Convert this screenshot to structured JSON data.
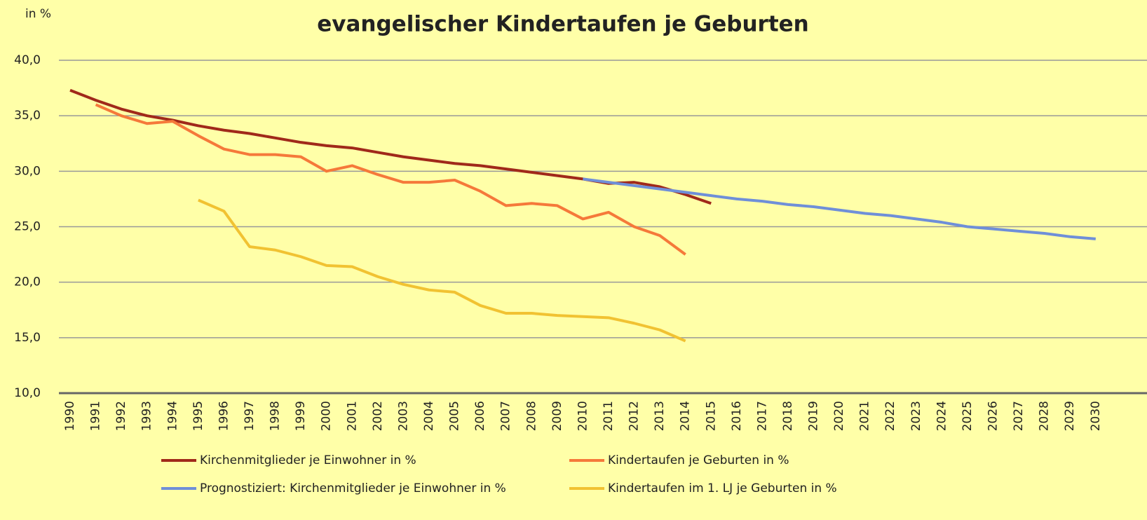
{
  "chart_data": {
    "type": "line",
    "title": "evangelischer Kindertaufen je Geburten",
    "y_label": "in %",
    "categories": [
      "1990",
      "1991",
      "1992",
      "1993",
      "1994",
      "1995",
      "1996",
      "1997",
      "1998",
      "1999",
      "2000",
      "2001",
      "2002",
      "2003",
      "2004",
      "2005",
      "2006",
      "2007",
      "2008",
      "2009",
      "2010",
      "2011",
      "2012",
      "2013",
      "2014",
      "2015",
      "2016",
      "2017",
      "2018",
      "2019",
      "2020",
      "2021",
      "2022",
      "2023",
      "2024",
      "2025",
      "2026",
      "2027",
      "2028",
      "2029",
      "2030"
    ],
    "series": [
      {
        "name": "Kirchenmitglieder je Einwohner in %",
        "color": "#a0291a",
        "values": [
          37.3,
          36.4,
          35.6,
          35.0,
          34.6,
          34.1,
          33.7,
          33.4,
          33.0,
          32.6,
          32.3,
          32.1,
          31.7,
          31.3,
          31.0,
          30.7,
          30.5,
          30.2,
          29.9,
          29.6,
          29.3,
          28.9,
          29.0,
          28.6,
          27.9,
          27.1,
          null,
          null,
          null,
          null,
          null,
          null,
          null,
          null,
          null,
          null,
          null,
          null,
          null,
          null,
          null
        ]
      },
      {
        "name": "Kindertaufen je Geburten in %",
        "color": "#f5793a",
        "values": [
          null,
          36.0,
          35.0,
          34.3,
          34.5,
          33.2,
          32.0,
          31.5,
          31.5,
          31.3,
          30.0,
          30.5,
          29.7,
          29.0,
          29.0,
          29.2,
          28.2,
          26.9,
          27.1,
          26.9,
          25.7,
          26.3,
          25.0,
          24.2,
          22.5,
          null,
          null,
          null,
          null,
          null,
          null,
          null,
          null,
          null,
          null,
          null,
          null,
          null,
          null,
          null,
          null
        ]
      },
      {
        "name": "Prognostiziert: Kirchenmitglieder je Einwohner in %",
        "color": "#6f8fd8",
        "values": [
          null,
          null,
          null,
          null,
          null,
          null,
          null,
          null,
          null,
          null,
          null,
          null,
          null,
          null,
          null,
          null,
          null,
          null,
          null,
          null,
          29.3,
          29.0,
          28.7,
          28.4,
          28.1,
          27.8,
          27.5,
          27.3,
          27.0,
          26.8,
          26.5,
          26.2,
          26.0,
          25.7,
          25.4,
          25.0,
          24.8,
          24.6,
          24.4,
          24.1,
          23.9
        ]
      },
      {
        "name": "Kindertaufen im 1. LJ je Geburten in %",
        "color": "#f1c232",
        "values": [
          null,
          null,
          null,
          null,
          null,
          27.4,
          26.4,
          23.2,
          22.9,
          22.3,
          21.5,
          21.4,
          20.5,
          19.8,
          19.3,
          19.1,
          17.9,
          17.2,
          17.2,
          17.0,
          16.9,
          16.8,
          16.3,
          15.7,
          14.7,
          null,
          null,
          null,
          null,
          null,
          null,
          null,
          null,
          null,
          null,
          null,
          null,
          null,
          null,
          null,
          null
        ]
      }
    ],
    "ylim": [
      10,
      40
    ],
    "yticks": [
      {
        "value": 10,
        "label": "10,0"
      },
      {
        "value": 15,
        "label": "15,0"
      },
      {
        "value": 20,
        "label": "20,0"
      },
      {
        "value": 25,
        "label": "25,0"
      },
      {
        "value": 30,
        "label": "30,0"
      },
      {
        "value": 35,
        "label": "35,0"
      },
      {
        "value": 40,
        "label": "40,0"
      }
    ],
    "grid": true
  }
}
